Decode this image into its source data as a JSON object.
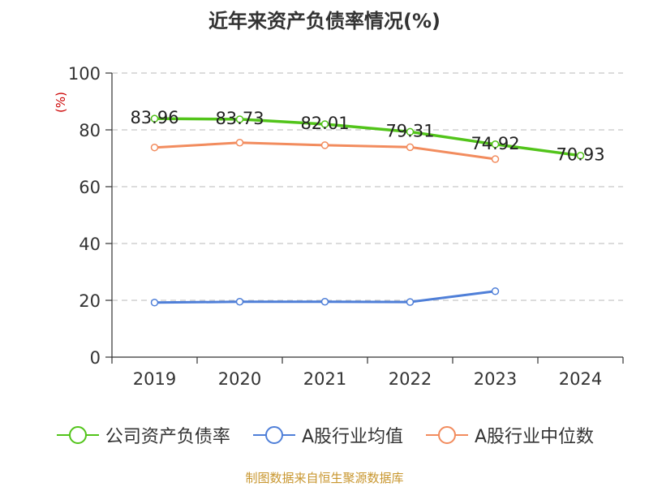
{
  "chart_data": {
    "type": "line",
    "title": "近年来资产负债率情况(%)",
    "ylabel": "(%)",
    "categories": [
      "2019",
      "2020",
      "2021",
      "2022",
      "2023",
      "2024"
    ],
    "ylim": [
      0,
      100
    ],
    "yticks": [
      0,
      20,
      40,
      60,
      80,
      100
    ],
    "grid": true,
    "legend_position": "bottom",
    "series": [
      {
        "name": "公司资产负债率",
        "color": "#52c41a",
        "values": [
          83.96,
          83.73,
          82.01,
          79.31,
          74.92,
          70.93
        ],
        "labels": [
          "83.96",
          "83.73",
          "82.01",
          "79.31",
          "74.92",
          "70.93"
        ]
      },
      {
        "name": "A股行业均值",
        "color": "#4f7fd8",
        "values": [
          19.2,
          19.5,
          19.5,
          19.4,
          23.2,
          null
        ]
      },
      {
        "name": "A股行业中位数",
        "color": "#f28c5e",
        "values": [
          73.8,
          75.5,
          74.6,
          73.9,
          69.7,
          null
        ]
      }
    ]
  },
  "source": "制图数据来自恒生聚源数据库"
}
